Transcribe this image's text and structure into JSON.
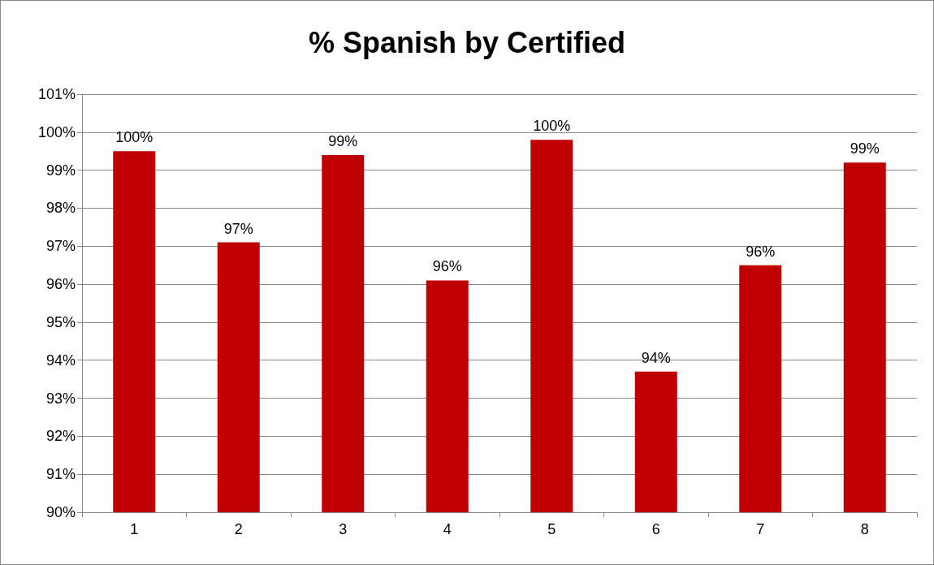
{
  "chart_data": {
    "type": "bar",
    "title": "% Spanish by Certified",
    "categories": [
      "1",
      "2",
      "3",
      "4",
      "5",
      "6",
      "7",
      "8"
    ],
    "values": [
      99.5,
      97.1,
      99.4,
      96.1,
      99.8,
      93.7,
      96.5,
      99.2
    ],
    "value_labels": [
      "100%",
      "97%",
      "99%",
      "96%",
      "100%",
      "94%",
      "96%",
      "99%"
    ],
    "color": "#c00000",
    "ylim": [
      90,
      101
    ],
    "yticks": [
      {
        "value": 90,
        "label": "90%"
      },
      {
        "value": 91,
        "label": "91%"
      },
      {
        "value": 92,
        "label": "92%"
      },
      {
        "value": 93,
        "label": "93%"
      },
      {
        "value": 94,
        "label": "94%"
      },
      {
        "value": 95,
        "label": "95%"
      },
      {
        "value": 96,
        "label": "96%"
      },
      {
        "value": 97,
        "label": "97%"
      },
      {
        "value": 98,
        "label": "98%"
      },
      {
        "value": 99,
        "label": "99%"
      },
      {
        "value": 100,
        "label": "100%"
      },
      {
        "value": 101,
        "label": "101%"
      }
    ],
    "grid": "y"
  }
}
